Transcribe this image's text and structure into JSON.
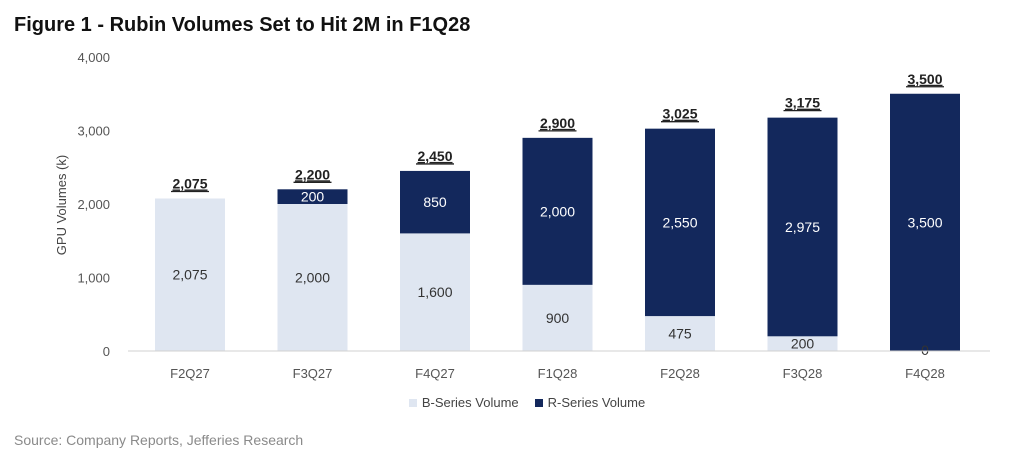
{
  "figure_title": "Figure 1 - Rubin Volumes Set to Hit 2M in F1Q28",
  "source": "Source: Company Reports, Jefferies Research",
  "colors": {
    "b_series": "#dfe6f1",
    "r_series": "#13285c",
    "axis": "#555555",
    "label_dark": "#333333",
    "label_light": "#ffffff"
  },
  "chart_data": {
    "type": "bar",
    "stacked": true,
    "categories": [
      "F2Q27",
      "F3Q27",
      "F4Q27",
      "F1Q28",
      "F2Q28",
      "F3Q28",
      "F4Q28"
    ],
    "series": [
      {
        "name": "B-Series Volume",
        "values": [
          2075,
          2000,
          1600,
          900,
          475,
          200,
          0
        ]
      },
      {
        "name": "R-Series Volume",
        "values": [
          0,
          200,
          850,
          2000,
          2550,
          2975,
          3500
        ]
      }
    ],
    "totals": [
      2075,
      2200,
      2450,
      2900,
      3025,
      3175,
      3500
    ],
    "ylabel": "GPU Volumes (k)",
    "ylim": [
      0,
      4000
    ],
    "yticks": [
      0,
      1000,
      2000,
      3000,
      4000
    ],
    "ytick_labels": [
      "0",
      "1,000",
      "2,000",
      "3,000",
      "4,000"
    ],
    "grid": false,
    "legend_position": "bottom"
  }
}
